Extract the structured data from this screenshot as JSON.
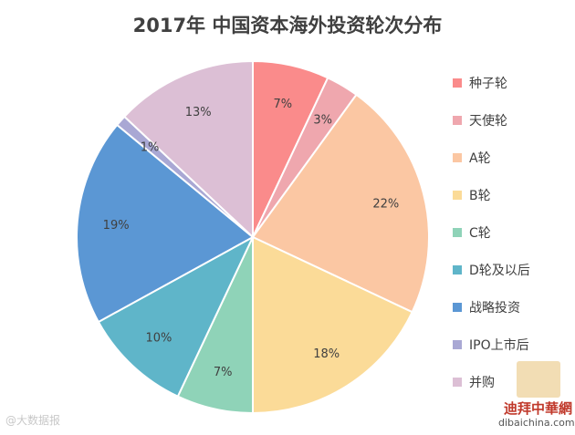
{
  "chart_data": {
    "type": "pie",
    "title": "2017年 中国资本海外投资轮次分布",
    "slices": [
      {
        "label": "种子轮",
        "value": 7,
        "display": "7%",
        "color": "#fa8b8b"
      },
      {
        "label": "天使轮",
        "value": 3,
        "display": "3%",
        "color": "#efa7ae"
      },
      {
        "label": "A轮",
        "value": 22,
        "display": "22%",
        "color": "#fbc7a3"
      },
      {
        "label": "B轮",
        "value": 18,
        "display": "18%",
        "color": "#fbdb98"
      },
      {
        "label": "C轮",
        "value": 7,
        "display": "7%",
        "color": "#8fd3b8"
      },
      {
        "label": "D轮及以后",
        "value": 10,
        "display": "10%",
        "color": "#5fb5c9"
      },
      {
        "label": "战略投资",
        "value": 19,
        "display": "19%",
        "color": "#5b97d4"
      },
      {
        "label": "IPO上市后",
        "value": 1,
        "display": "1%",
        "color": "#a9a8d4"
      },
      {
        "label": "并购",
        "value": 13,
        "display": "13%",
        "color": "#dcbfd5"
      }
    ],
    "legend_position": "right"
  },
  "watermarks": {
    "left": "@大数据报",
    "brand": "迪拜中華網",
    "url": "dibaichina.com"
  }
}
